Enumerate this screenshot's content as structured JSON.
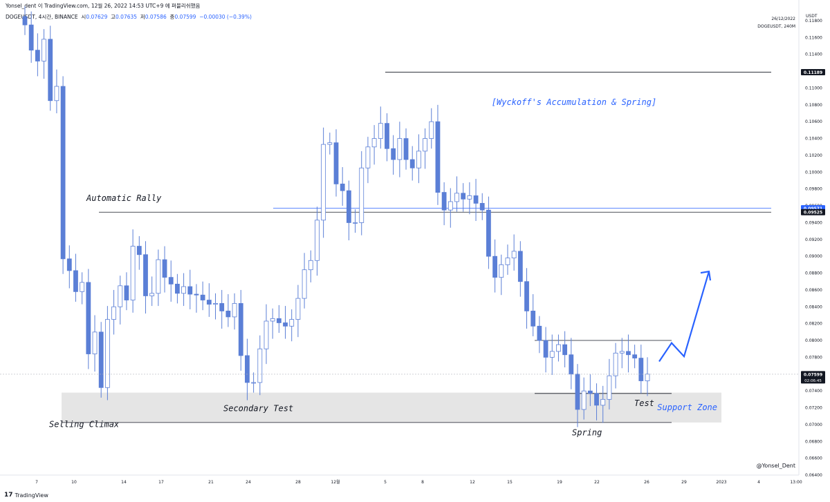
{
  "header": {
    "attribution": "Yonsel_dent 이 TradingView.com, 12월 26, 2022 14:53 UTC+9 에 퍼블리쉬했음",
    "symbol": "DOGEUSDT, 4시간, BINANCE",
    "o_label": "시",
    "o_value": "0.07629",
    "h_label": "고",
    "h_value": "0.07635",
    "l_label": "저",
    "l_value": "0.07586",
    "c_label": "종",
    "c_value": "0.07599",
    "change": "−0.00030 (−0.39%)",
    "date": "26/12/2022",
    "symbol_short": "DOGEUSDT, 240M",
    "currency": "USDT"
  },
  "footer": {
    "brand": "TradingView",
    "author": "@Yonsel_Dent"
  },
  "colors": {
    "candle": "#5b7fd6",
    "accent": "#2962ff",
    "zone": "#e5e5e5",
    "line": "#131722"
  },
  "chart_data": {
    "type": "candlestick",
    "title": "[Wyckoff's Accumulation & Spring]",
    "ylabel": "USDT",
    "ylim": [
      0.064,
      0.118
    ],
    "yticks": [
      "0.11800",
      "0.11600",
      "0.11400",
      "0.11200",
      "0.11000",
      "0.10800",
      "0.10600",
      "0.10400",
      "0.10200",
      "0.10000",
      "0.09800",
      "0.09600",
      "0.09400",
      "0.09200",
      "0.09000",
      "0.08800",
      "0.08600",
      "0.08400",
      "0.08200",
      "0.08000",
      "0.07800",
      "0.07600",
      "0.07400",
      "0.07200",
      "0.07000",
      "0.06800",
      "0.06600",
      "0.06400"
    ],
    "xticks": [
      "7",
      "10",
      "14",
      "17",
      "21",
      "24",
      "28",
      "12월",
      "5",
      "8",
      "12",
      "15",
      "19",
      "22",
      "26",
      "29",
      "2023",
      "4",
      "13:00"
    ],
    "price_tags": [
      {
        "value": 0.11189,
        "label": "0.11189",
        "style": "dark"
      },
      {
        "value": 0.09571,
        "label": "0.09571",
        "style": "blue"
      },
      {
        "value": 0.09525,
        "label": "0.09525",
        "style": "dark"
      },
      {
        "value": 0.07599,
        "label": "0.07599",
        "sub": "02:06:45",
        "style": "dark"
      }
    ],
    "horizontal_lines": [
      {
        "from": "2022-11-12",
        "to": "2023-01-05",
        "value": 0.09525
      },
      {
        "from": "2022-11-26",
        "to": "2023-01-05",
        "value": 0.09571,
        "color": "#2962ff"
      },
      {
        "from": "2022-12-05",
        "to": "2023-01-05",
        "value": 0.11189
      },
      {
        "from": "2022-12-17",
        "to": "2022-12-28",
        "value": 0.08
      },
      {
        "from": "2022-12-17",
        "to": "2022-12-28",
        "value": 0.0737
      },
      {
        "from": "2022-11-09",
        "to": "2022-12-28",
        "value": 0.07025
      }
    ],
    "support_zone": {
      "label": "Support Zone",
      "from": "2022-11-09",
      "to": "2023-01-01",
      "low": 0.07025,
      "high": 0.0738
    },
    "annotations": [
      {
        "text": "Automatic Rally",
        "date": "2022-11-11",
        "value": 0.0966
      },
      {
        "text": "Selling Climax",
        "date": "2022-11-08",
        "value": 0.0697
      },
      {
        "text": "Secondary Test",
        "date": "2022-11-22",
        "value": 0.0716
      },
      {
        "text": "Spring",
        "date": "2022-12-20",
        "value": 0.0687
      },
      {
        "text": "Test",
        "date": "2022-12-25",
        "value": 0.0722
      }
    ],
    "projection": {
      "points": [
        {
          "date": "2022-12-27",
          "value": 0.0775
        },
        {
          "date": "2022-12-28",
          "value": 0.0797
        },
        {
          "date": "2022-12-29",
          "value": 0.0781
        },
        {
          "date": "2022-12-31",
          "value": 0.0882
        }
      ],
      "color": "#2962ff"
    },
    "series": [
      {
        "values": [
          0.1175,
          0.1145,
          0.1132,
          0.1158,
          0.1085,
          0.1102,
          0.0897,
          0.0883,
          0.0858,
          0.0869,
          0.0784,
          0.081,
          0.0744,
          0.0825,
          0.084,
          0.0865,
          0.0848,
          0.0912,
          0.0902,
          0.0853,
          0.0856,
          0.0896,
          0.0875,
          0.0867,
          0.0856,
          0.0864,
          0.0855,
          0.0854,
          0.0848,
          0.0843,
          0.0844,
          0.0835,
          0.0828,
          0.0844,
          0.0782,
          0.075,
          0.075,
          0.079,
          0.0823,
          0.0826,
          0.0821,
          0.0817,
          0.0825,
          0.085,
          0.0884,
          0.0895,
          0.0943,
          0.1033,
          0.1035,
          0.0986,
          0.0978,
          0.094,
          0.094,
          0.1005,
          0.103,
          0.104,
          0.1058,
          0.1028,
          0.1015,
          0.104,
          0.1015,
          0.1005,
          0.1025,
          0.104,
          0.106,
          0.0976,
          0.0955,
          0.0965,
          0.0975,
          0.0968,
          0.0972,
          0.0963,
          0.0955,
          0.09,
          0.0875,
          0.089,
          0.0898,
          0.0906,
          0.087,
          0.0835,
          0.0817,
          0.08,
          0.078,
          0.0787,
          0.0795,
          0.0783,
          0.076,
          0.0718,
          0.074,
          0.0737,
          0.0723,
          0.073,
          0.0758,
          0.0785,
          0.0787,
          0.0783,
          0.0779,
          0.0752,
          0.076
        ]
      }
    ]
  }
}
